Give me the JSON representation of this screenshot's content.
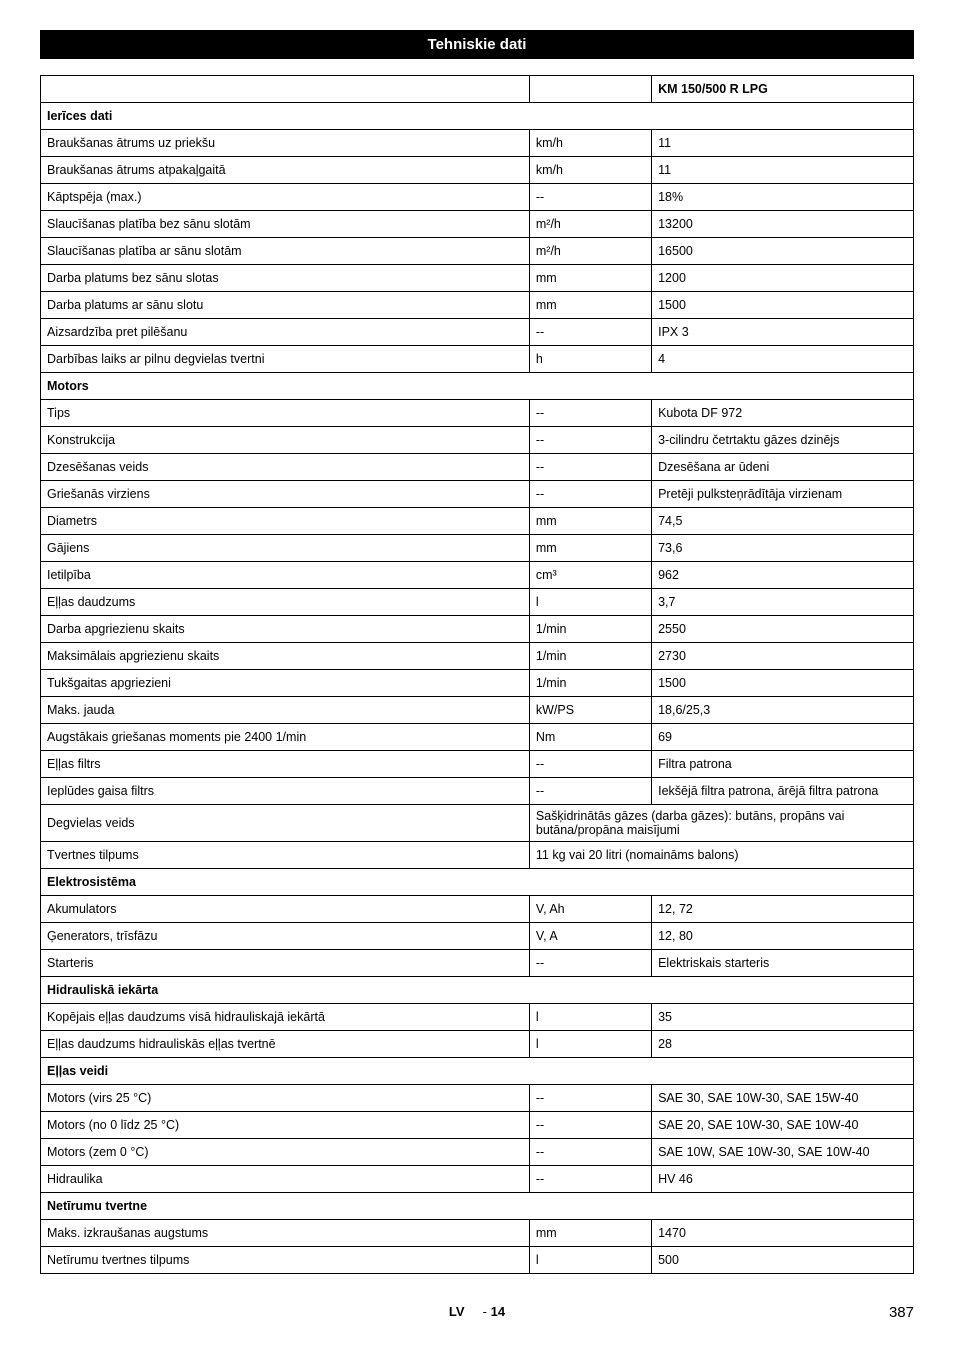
{
  "page": {
    "title_bar": "Tehniskie dati",
    "footer_lang": "LV",
    "footer_page_prefix": "-",
    "footer_page_num": "14",
    "footer_total": "387"
  },
  "table": {
    "model_header": "KM 150/500 R LPG",
    "sections": [
      {
        "title": "Ierīces dati",
        "rows": [
          {
            "label": "Braukšanas ātrums uz priekšu",
            "unit": "km/h",
            "value": "11"
          },
          {
            "label": "Braukšanas ātrums atpakaļgaitā",
            "unit": "km/h",
            "value": "11"
          },
          {
            "label": "Kāptspēja (max.)",
            "unit": "--",
            "value": "18%"
          },
          {
            "label": "Slaucīšanas platība bez sānu slotām",
            "unit": "m²/h",
            "value": "13200"
          },
          {
            "label": "Slaucīšanas platība ar sānu slotām",
            "unit": "m²/h",
            "value": "16500"
          },
          {
            "label": "Darba platums bez sānu slotas",
            "unit": "mm",
            "value": "1200"
          },
          {
            "label": "Darba platums ar sānu slotu",
            "unit": "mm",
            "value": "1500"
          },
          {
            "label": "Aizsardzība pret pilēšanu",
            "unit": "--",
            "value": "IPX 3"
          },
          {
            "label": "Darbības laiks ar pilnu degvielas tvertni",
            "unit": "h",
            "value": "4"
          }
        ]
      },
      {
        "title": "Motors",
        "rows": [
          {
            "label": "Tips",
            "unit": "--",
            "value": "Kubota DF 972"
          },
          {
            "label": "Konstrukcija",
            "unit": "--",
            "value": "3-cilindru četrtaktu gāzes dzinējs"
          },
          {
            "label": "Dzesēšanas veids",
            "unit": "--",
            "value": "Dzesēšana ar ūdeni"
          },
          {
            "label": "Griešanās virziens",
            "unit": "--",
            "value": "Pretēji pulksteņrādītāja virzienam"
          },
          {
            "label": "Diametrs",
            "unit": "mm",
            "value": "74,5"
          },
          {
            "label": "Gājiens",
            "unit": "mm",
            "value": "73,6"
          },
          {
            "label": "Ietilpība",
            "unit": "cm³",
            "value": "962"
          },
          {
            "label": "Eļļas daudzums",
            "unit": "l",
            "value": "3,7"
          },
          {
            "label": "Darba apgriezienu skaits",
            "unit": "1/min",
            "value": "2550"
          },
          {
            "label": "Maksimālais apgriezienu skaits",
            "unit": "1/min",
            "value": "2730"
          },
          {
            "label": "Tukšgaitas apgriezieni",
            "unit": "1/min",
            "value": "1500"
          },
          {
            "label": "Maks. jauda",
            "unit": "kW/PS",
            "value": "18,6/25,3"
          },
          {
            "label": "Augstākais griešanas moments pie 2400 1/min",
            "unit": "Nm",
            "value": "69"
          },
          {
            "label": "Eļļas filtrs",
            "unit": "--",
            "value": "Filtra patrona"
          },
          {
            "label": "Ieplūdes gaisa filtrs",
            "unit": "--",
            "value": "Iekšējā filtra patrona, ārējā filtra patrona"
          }
        ],
        "merged_rows": [
          {
            "label": "Degvielas veids",
            "value": "Sašķidrinātās gāzes (darba gāzes): butāns, propāns vai butāna/propāna maisījumi"
          },
          {
            "label": "Tvertnes tilpums",
            "value": "11 kg vai 20 litri (nomaināms balons)"
          }
        ]
      },
      {
        "title": "Elektrosistēma",
        "rows": [
          {
            "label": "Akumulators",
            "unit": "V, Ah",
            "value": "12, 72"
          },
          {
            "label": "Ģenerators, trīsfāzu",
            "unit": "V, A",
            "value": "12, 80"
          },
          {
            "label": "Starteris",
            "unit": "--",
            "value": "Elektriskais starteris"
          }
        ]
      },
      {
        "title": "Hidrauliskā iekārta",
        "rows": [
          {
            "label": "Kopējais eļļas daudzums visā hidrauliskajā iekārtā",
            "unit": "l",
            "value": "35"
          },
          {
            "label": "Eļļas daudzums hidrauliskās eļļas tvertnē",
            "unit": "l",
            "value": "28"
          }
        ]
      },
      {
        "title": "Eļļas veidi",
        "rows": [
          {
            "label": "Motors (virs 25 °C)",
            "unit": "--",
            "value": "SAE 30, SAE 10W-30, SAE 15W-40"
          },
          {
            "label": "Motors (no 0 līdz 25 °C)",
            "unit": "--",
            "value": "SAE 20, SAE 10W-30, SAE 10W-40"
          },
          {
            "label": "Motors (zem 0 °C)",
            "unit": "--",
            "value": "SAE 10W, SAE 10W-30, SAE 10W-40"
          },
          {
            "label": "Hidraulika",
            "unit": "--",
            "value": "HV 46"
          }
        ]
      },
      {
        "title": "Netīrumu tvertne",
        "rows": [
          {
            "label": "Maks. izkraušanas augstums",
            "unit": "mm",
            "value": "1470"
          },
          {
            "label": "Netīrumu tvertnes tilpums",
            "unit": "l",
            "value": "500"
          }
        ]
      }
    ]
  }
}
